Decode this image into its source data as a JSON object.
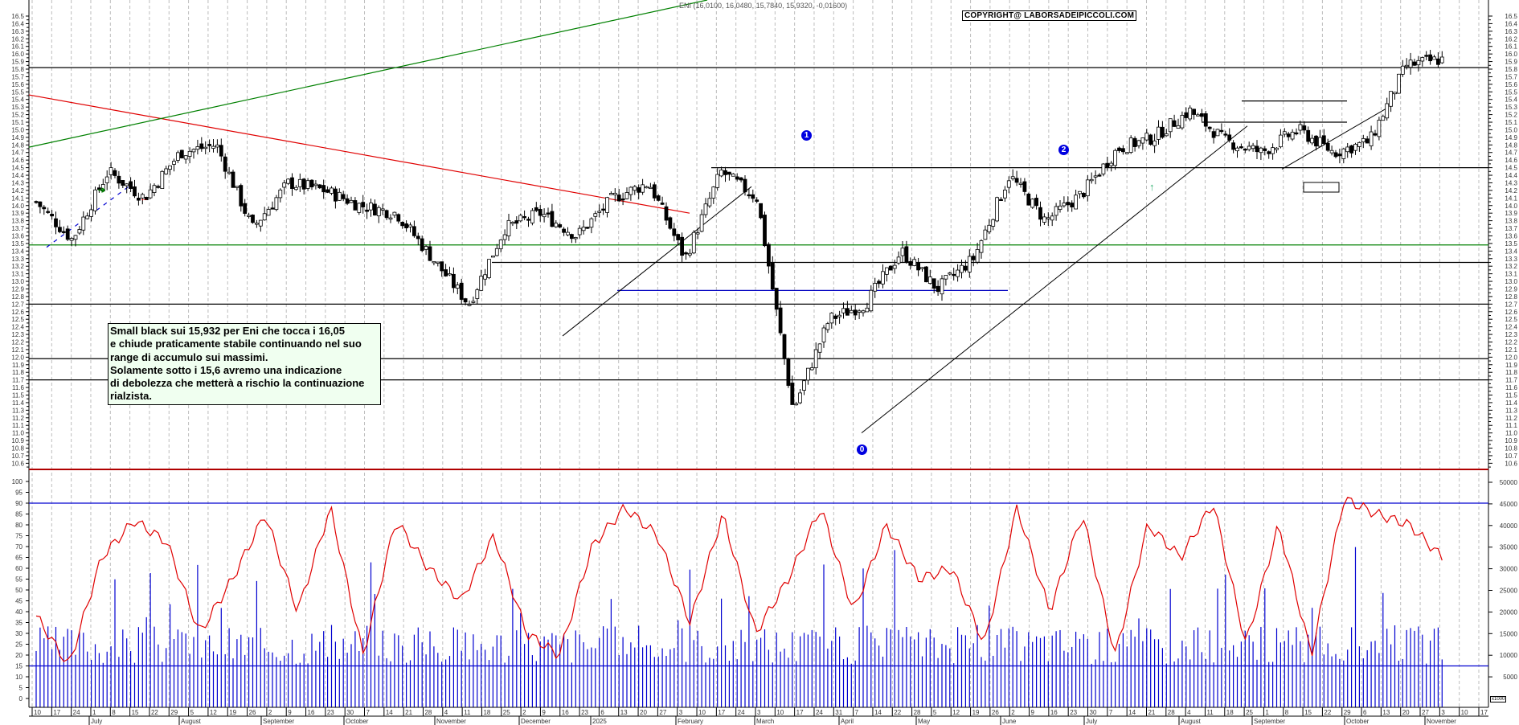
{
  "header": {
    "title": "ENI (16,0100, 16,0480, 15,7840, 15,9320, -0,01600)",
    "copyright": "COPYRIGHT@ LABORSADEIPICCOLI.COM"
  },
  "note": {
    "lines": [
      "Small black sui 15,932 per Eni che tocca i 16,05",
      "e chiude praticamente stabile continuando nel suo",
      "range di accumulo sui massimi.",
      "Solamente sotto i 15,6 avremo una indicazione",
      "di debolezza che metterà a rischio la continuazione",
      "rialzista."
    ]
  },
  "markers": {
    "m0": "0",
    "m1": "1",
    "m2": "2"
  },
  "volume_unit": "x1000",
  "chart_data": [
    {
      "type": "candlestick",
      "title": "ENI (16,0100, 16,0480, 15,7840, 15,9320, -0,01600)",
      "ylim": [
        10.5,
        16.6
      ],
      "yticks_step": 0.1,
      "last_bar": {
        "open": 16.01,
        "high": 16.048,
        "low": 15.784,
        "close": 15.932,
        "change": -0.016
      },
      "horizontal_levels": [
        {
          "value": 15.82,
          "color": "#000000"
        },
        {
          "value": 14.5,
          "color": "#000000"
        },
        {
          "value": 13.48,
          "color": "#008000"
        },
        {
          "value": 13.25,
          "color": "#000000"
        },
        {
          "value": 12.88,
          "color": "#0000c0"
        },
        {
          "value": 12.7,
          "color": "#000000"
        },
        {
          "value": 11.98,
          "color": "#000000"
        },
        {
          "value": 11.7,
          "color": "#000000"
        }
      ],
      "trendlines": [
        {
          "color": "#e00000",
          "from": [
            "Jun 10",
            15.46
          ],
          "to": [
            "Feb 3",
            13.92
          ]
        },
        {
          "color": "#008000",
          "from": [
            "Jun 10",
            14.77
          ],
          "to": [
            "Apr 1",
            16.6
          ]
        },
        {
          "color": "#000000",
          "from": [
            "Dec 2",
            12.28
          ],
          "to": [
            "Mar 10",
            14.25
          ]
        },
        {
          "color": "#000000",
          "from": [
            "Apr 7",
            11.0
          ],
          "to": [
            "Aug 25",
            15.05
          ]
        },
        {
          "color": "#000000",
          "from": [
            "Sep 22",
            14.5
          ],
          "to": [
            "Oct 20",
            15.3
          ]
        }
      ],
      "annotations": [
        "0 (Apr 7 low ~11.0)",
        "1 (Mar top ~14.85)",
        "2 (Jun top ~14.65)"
      ],
      "approx_closes": [
        {
          "date": "Jun 10",
          "close": 14.05
        },
        {
          "date": "Jun 24",
          "close": 13.55
        },
        {
          "date": "Jul 8",
          "close": 14.45
        },
        {
          "date": "Jul 22",
          "close": 14.1
        },
        {
          "date": "Aug 5",
          "close": 14.7
        },
        {
          "date": "Aug 26",
          "close": 14.8
        },
        {
          "date": "Sep 9",
          "close": 13.7
        },
        {
          "date": "Sep 30",
          "close": 14.3
        },
        {
          "date": "Oct 21",
          "close": 14.2
        },
        {
          "date": "Nov 11",
          "close": 14.0
        },
        {
          "date": "Nov 25",
          "close": 13.9
        },
        {
          "date": "Dec 2",
          "close": 13.3
        },
        {
          "date": "Dec 16",
          "close": 12.7
        },
        {
          "date": "Jan 8 2025",
          "close": 13.7
        },
        {
          "date": "Jan 20",
          "close": 13.9
        },
        {
          "date": "Feb 3",
          "close": 13.6
        },
        {
          "date": "Feb 17",
          "close": 14.1
        },
        {
          "date": "Mar 3",
          "close": 14.3
        },
        {
          "date": "Mar 10",
          "close": 13.3
        },
        {
          "date": "Mar 24",
          "close": 14.45
        },
        {
          "date": "Apr 1",
          "close": 14.1
        },
        {
          "date": "Apr 7",
          "close": 11.3
        },
        {
          "date": "Apr 22",
          "close": 12.5
        },
        {
          "date": "May 5",
          "close": 12.7
        },
        {
          "date": "May 19",
          "close": 13.4
        },
        {
          "date": "May 26",
          "close": 12.9
        },
        {
          "date": "Jun 9",
          "close": 13.3
        },
        {
          "date": "Jun 20",
          "close": 14.4
        },
        {
          "date": "Jun 30",
          "close": 13.8
        },
        {
          "date": "Jul 14",
          "close": 14.15
        },
        {
          "date": "Jul 28",
          "close": 14.75
        },
        {
          "date": "Aug 11",
          "close": 14.9
        },
        {
          "date": "Aug 25",
          "close": 15.25
        },
        {
          "date": "Sep 8",
          "close": 14.85
        },
        {
          "date": "Sep 22",
          "close": 14.7
        },
        {
          "date": "Oct 6",
          "close": 15.0
        },
        {
          "date": "Oct 13",
          "close": 14.7
        },
        {
          "date": "Oct 20",
          "close": 14.85
        },
        {
          "date": "Oct 27",
          "close": 15.85
        },
        {
          "date": "Nov 3",
          "close": 15.93
        }
      ]
    },
    {
      "type": "line+bar",
      "title": "Oscillator and Volume",
      "ylim_left": [
        0,
        100
      ],
      "ylim_right": [
        0,
        50000
      ],
      "right_unit": "x1000",
      "horizontal_levels": [
        90,
        15
      ],
      "yticks_left": [
        0,
        5,
        10,
        15,
        20,
        25,
        30,
        35,
        40,
        45,
        50,
        55,
        60,
        65,
        70,
        75,
        80,
        85,
        90,
        95,
        100
      ],
      "yticks_right": [
        5000,
        10000,
        15000,
        20000,
        25000,
        30000,
        35000,
        40000,
        45000,
        50000
      ],
      "oscillator_approx": [
        38,
        15,
        65,
        82,
        72,
        30,
        55,
        85,
        40,
        88,
        20,
        82,
        60,
        45,
        75,
        30,
        20,
        70,
        88,
        75,
        35,
        85,
        30,
        55,
        88,
        40,
        80,
        55,
        60,
        25,
        88,
        40,
        85,
        20,
        80,
        65,
        90,
        25,
        80,
        20,
        92,
        85,
        80,
        65
      ]
    }
  ],
  "x_axis": {
    "days": [
      "10",
      "17",
      "24",
      "1",
      "8",
      "15",
      "22",
      "29",
      "5",
      "12",
      "19",
      "26",
      "2",
      "9",
      "16",
      "23",
      "30",
      "7",
      "14",
      "21",
      "28",
      "4",
      "11",
      "18",
      "25",
      "2",
      "9",
      "16",
      "23",
      "6",
      "13",
      "20",
      "27",
      "3",
      "10",
      "17",
      "24",
      "3",
      "10",
      "17",
      "24",
      "31",
      "7",
      "14",
      "22",
      "28",
      "5",
      "12",
      "19",
      "26",
      "2",
      "9",
      "16",
      "23",
      "30",
      "7",
      "14",
      "21",
      "28",
      "4",
      "11",
      "18",
      "25",
      "1",
      "8",
      "15",
      "22",
      "29",
      "6",
      "13",
      "20",
      "27",
      "3",
      "10",
      "17"
    ],
    "months": [
      "July",
      "August",
      "September",
      "October",
      "November",
      "December",
      "2025",
      "February",
      "March",
      "April",
      "May",
      "June",
      "July",
      "August",
      "September",
      "October",
      "November"
    ]
  },
  "y_axis_price": [
    "16.5",
    "16.4",
    "16.3",
    "16.2",
    "16.1",
    "16.0",
    "15.9",
    "15.8",
    "15.7",
    "15.6",
    "15.5",
    "15.4",
    "15.3",
    "15.2",
    "15.1",
    "15.0",
    "14.9",
    "14.8",
    "14.7",
    "14.6",
    "14.5",
    "14.4",
    "14.3",
    "14.2",
    "14.1",
    "14.0",
    "13.9",
    "13.8",
    "13.7",
    "13.6",
    "13.5",
    "13.4",
    "13.3",
    "13.2",
    "13.1",
    "13.0",
    "12.9",
    "12.8",
    "12.7",
    "12.6",
    "12.5",
    "12.4",
    "12.3",
    "12.2",
    "12.1",
    "12.0",
    "11.9",
    "11.8",
    "11.7",
    "11.6",
    "11.5",
    "11.4",
    "11.3",
    "11.2",
    "11.1",
    "11.0",
    "10.9",
    "10.8",
    "10.7",
    "10.6"
  ]
}
